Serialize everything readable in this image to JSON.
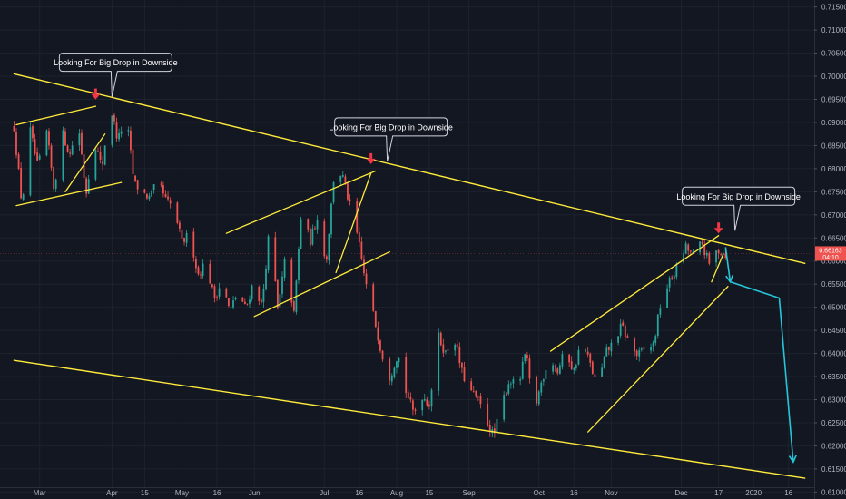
{
  "chart_data": {
    "type": "candlestick",
    "x_ticks": [
      "Mar",
      "Apr",
      "15",
      "May",
      "16",
      "Jun",
      "Jul",
      "16",
      "Aug",
      "15",
      "Sep",
      "Oct",
      "16",
      "Nov",
      "Dec",
      "17",
      "2020",
      "16"
    ],
    "y_ticks": [
      "0.71500",
      "0.71000",
      "0.70500",
      "0.70000",
      "0.69500",
      "0.69000",
      "0.68500",
      "0.68000",
      "0.67500",
      "0.67000",
      "0.66500",
      "0.66000",
      "0.65500",
      "0.65000",
      "0.64500",
      "0.64000",
      "0.63500",
      "0.63000",
      "0.62500",
      "0.62000",
      "0.61500",
      "0.61000"
    ],
    "ylim": [
      0.6085,
      0.7165
    ],
    "current_price": {
      "label": "0.66163",
      "sub_label": "04:10",
      "value": 0.66163
    },
    "price_path": [
      [
        0.689,
        0.672,
        0.6885,
        0.68,
        0.689,
        0.6755,
        0.688,
        0.683,
        0.6905,
        0.6745
      ],
      [
        0.6865,
        0.68,
        0.694,
        0.686,
        0.692,
        0.677,
        0.675,
        0.6735,
        0.6775,
        0.673
      ],
      [
        0.6715,
        0.664,
        0.666,
        0.657,
        0.66,
        0.652,
        0.6555,
        0.649,
        0.6535,
        0.6495
      ],
      [
        0.656,
        0.65,
        0.668,
        0.649,
        0.6615,
        0.648,
        0.672,
        0.664,
        0.67,
        0.659
      ],
      [
        0.678,
        0.679,
        0.672,
        0.665,
        0.655,
        0.648,
        0.64,
        0.635,
        0.64,
        0.632
      ],
      [
        0.627,
        0.631,
        0.629,
        0.644,
        0.64,
        0.644,
        0.636,
        0.632,
        0.63,
        0.626
      ],
      [
        0.622,
        0.629,
        0.6345,
        0.632,
        0.6405,
        0.627,
        0.634,
        0.6395,
        0.636,
        0.641
      ],
      [
        0.636,
        0.643,
        0.638,
        0.6325,
        0.64,
        0.6425,
        0.646,
        0.642,
        0.6395,
        0.641
      ],
      [
        0.642,
        0.652,
        0.6555,
        0.659,
        0.663,
        0.661,
        0.664,
        0.659,
        0.6625,
        0.6616
      ]
    ],
    "drawings": {
      "arrow_color": "#f23645",
      "channel_color": "#ffeb3b",
      "projection_color": "#26c6da",
      "upper_resistance": [
        [
          "2019-02-18",
          0.7005
        ],
        [
          "2020-01-23",
          0.6595
        ]
      ],
      "lower_support": [
        [
          "2019-02-18",
          0.6385
        ],
        [
          "2020-01-23",
          0.613
        ]
      ],
      "channels": [
        {
          "upper": [
            [
              "2019-02-19",
              0.6895
            ],
            [
              "2019-03-25",
              0.6935
            ]
          ],
          "lower": [
            [
              "2019-02-19",
              0.672
            ],
            [
              "2019-04-05",
              0.677
            ]
          ],
          "wedge": [
            [
              "2019-03-12",
              0.675
            ],
            [
              "2019-03-29",
              0.6875
            ]
          ]
        },
        {
          "upper": [
            [
              "2019-05-20",
              0.666
            ],
            [
              "2019-07-23",
              0.6795
            ]
          ],
          "lower": [
            [
              "2019-06-01",
              0.648
            ],
            [
              "2019-07-29",
              0.662
            ]
          ],
          "wedge": [
            [
              "2019-07-06",
              0.6575
            ],
            [
              "2019-07-21",
              0.679
            ]
          ]
        },
        {
          "upper": [
            [
              "2019-10-06",
              0.6405
            ],
            [
              "2019-12-17",
              0.6655
            ]
          ],
          "lower": [
            [
              "2019-10-22",
              0.623
            ],
            [
              "2019-12-21",
              0.6545
            ]
          ],
          "wedge": [
            [
              "2019-12-14",
              0.6555
            ],
            [
              "2019-12-19",
              0.6615
            ]
          ]
        }
      ],
      "projection": [
        [
          "2019-12-20",
          0.663
        ],
        [
          "2019-12-22",
          0.6555
        ],
        [
          "2020-01-12",
          0.652
        ],
        [
          "2020-01-18",
          0.6165
        ]
      ],
      "annotations": [
        {
          "text": "Looking For Big Drop in Downside",
          "arrow_at": [
            "2019-03-25",
            0.694
          ]
        },
        {
          "text": "Looking For Big Drop in Downside",
          "arrow_at": [
            "2019-07-21",
            0.68
          ]
        },
        {
          "text": "Looking For Big Drop in Downside",
          "arrow_at": [
            "2019-12-17",
            0.665
          ]
        }
      ]
    }
  }
}
